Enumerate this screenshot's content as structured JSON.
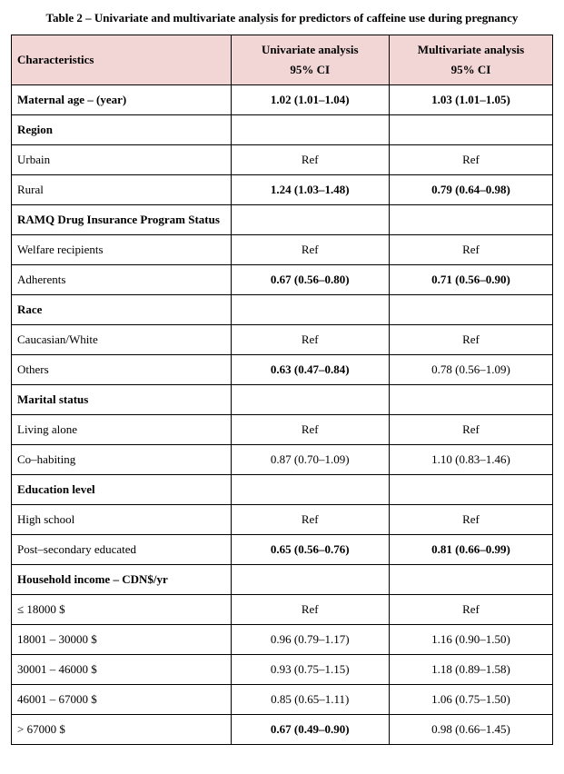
{
  "caption": "Table 2 – Univariate and multivariate analysis for predictors of caffeine use during pregnancy",
  "headers": {
    "char": "Characteristics",
    "uni_top": "Univariate analysis",
    "uni_sub": "95% CI",
    "mul_top": "Multivariate analysis",
    "mul_sub": "95% CI"
  },
  "rows": [
    {
      "label": "Maternal age – (year)",
      "uni": "1.02 (1.01–1.04)",
      "mul": "1.03 (1.01–1.05)",
      "section": true,
      "bold_uni": true,
      "bold_mul": true
    },
    {
      "label": "Region",
      "uni": "",
      "mul": "",
      "section": true
    },
    {
      "label": "Urbain",
      "uni": "Ref",
      "mul": "Ref"
    },
    {
      "label": "Rural",
      "uni": "1.24 (1.03–1.48)",
      "mul": "0.79 (0.64–0.98)",
      "bold_uni": true,
      "bold_mul": true
    },
    {
      "label": "RAMQ Drug Insurance Program Status",
      "uni": "",
      "mul": "",
      "section": true
    },
    {
      "label": "Welfare recipients",
      "uni": "Ref",
      "mul": "Ref"
    },
    {
      "label": "Adherents",
      "uni": "0.67 (0.56–0.80)",
      "mul": "0.71 (0.56–0.90)",
      "bold_uni": true,
      "bold_mul": true
    },
    {
      "label": "Race",
      "uni": "",
      "mul": "",
      "section": true
    },
    {
      "label": "Caucasian/White",
      "uni": "Ref",
      "mul": "Ref"
    },
    {
      "label": "Others",
      "uni": "0.63 (0.47–0.84)",
      "mul": "0.78 (0.56–1.09)",
      "bold_uni": true
    },
    {
      "label": "Marital status",
      "uni": "",
      "mul": "",
      "section": true
    },
    {
      "label": "Living alone",
      "uni": "Ref",
      "mul": "Ref"
    },
    {
      "label": "Co–habiting",
      "uni": "0.87 (0.70–1.09)",
      "mul": "1.10 (0.83–1.46)"
    },
    {
      "label": "Education level",
      "uni": "",
      "mul": "",
      "section": true
    },
    {
      "label": "High school",
      "uni": "Ref",
      "mul": "Ref"
    },
    {
      "label": "Post–secondary educated",
      "uni": "0.65 (0.56–0.76)",
      "mul": "0.81 (0.66–0.99)",
      "bold_uni": true,
      "bold_mul": true
    },
    {
      "label": "Household income – CDN$/yr",
      "uni": "",
      "mul": "",
      "section": true
    },
    {
      "label": "≤ 18000 $",
      "uni": "Ref",
      "mul": "Ref"
    },
    {
      "label": "18001 – 30000 $",
      "uni": "0.96 (0.79–1.17)",
      "mul": "1.16 (0.90–1.50)"
    },
    {
      "label": "30001 – 46000 $",
      "uni": "0.93 (0.75–1.15)",
      "mul": "1.18 (0.89–1.58)"
    },
    {
      "label": "46001 – 67000 $",
      "uni": "0.85 (0.65–1.11)",
      "mul": "1.06 (0.75–1.50)"
    },
    {
      "label": "> 67000 $",
      "uni": "0.67 (0.49–0.90)",
      "mul": "0.98 (0.66–1.45)",
      "bold_uni": true
    }
  ],
  "style": {
    "header_bg": "#f2d6d6",
    "border_color": "#000000",
    "font_family": "Times New Roman",
    "base_font_size_pt": 10
  }
}
